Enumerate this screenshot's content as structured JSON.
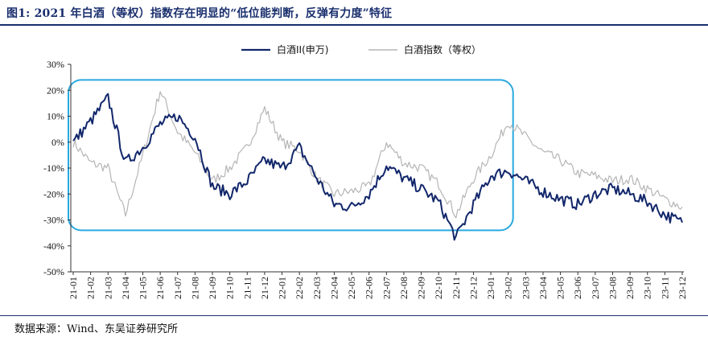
{
  "header": {
    "title": "图1:  2021 年白酒（等权）指数存在明显的“低位能判断，反弹有力度”特征"
  },
  "footer": {
    "source": "数据来源：Wind、东吴证券研究所"
  },
  "colors": {
    "series1": "#12276b",
    "series2": "#b5b5b5",
    "highlight": "#29a9e0",
    "axis": "#333333",
    "title": "#1a2f6e"
  },
  "chart_data": {
    "type": "line",
    "title": "",
    "xlabel": "",
    "ylabel": "",
    "ylim": [
      -50,
      30
    ],
    "yticks": [
      30,
      20,
      10,
      0,
      -10,
      -20,
      -30,
      -40,
      -50
    ],
    "ytick_labels": [
      "30%",
      "20%",
      "10%",
      "0%",
      "-10%",
      "-20%",
      "-30%",
      "-40%",
      "-50%"
    ],
    "categories": [
      "21-01",
      "21-02",
      "21-03",
      "21-04",
      "21-05",
      "21-06",
      "21-07",
      "21-08",
      "21-09",
      "21-10",
      "21-11",
      "21-12",
      "22-01",
      "22-02",
      "22-03",
      "22-04",
      "22-05",
      "22-06",
      "22-07",
      "22-08",
      "22-09",
      "22-10",
      "22-11",
      "22-12",
      "23-01",
      "23-02",
      "23-03",
      "23-04",
      "23-05",
      "23-06",
      "23-07",
      "23-08",
      "23-09",
      "23-10",
      "23-11",
      "23-12"
    ],
    "legend_position": "top-center",
    "highlight_label": "2021-01 to 2023-02 region",
    "series": [
      {
        "name": "白酒II(申万)",
        "color": "#12276b",
        "width": 2,
        "values": [
          0,
          8,
          17,
          -8,
          -2,
          7,
          10,
          2,
          -17,
          -20,
          -15,
          -7,
          -10,
          -2,
          -14,
          -24,
          -25,
          -20,
          -9,
          -14,
          -18,
          -23,
          -37,
          -24,
          -13,
          -11,
          -15,
          -19,
          -22,
          -24,
          -20,
          -18,
          -20,
          -23,
          -28,
          -31
        ]
      },
      {
        "name": "白酒指数（等权）",
        "color": "#b5b5b5",
        "width": 1.2,
        "values": [
          0,
          -8,
          -10,
          -28,
          -5,
          20,
          4,
          -4,
          -15,
          -10,
          -2,
          13,
          0,
          -3,
          -14,
          -20,
          -19,
          -17,
          0,
          -8,
          -10,
          -16,
          -28,
          -14,
          -5,
          8,
          2,
          -4,
          -7,
          -12,
          -13,
          -15,
          -14,
          -18,
          -22,
          -25
        ]
      }
    ]
  }
}
